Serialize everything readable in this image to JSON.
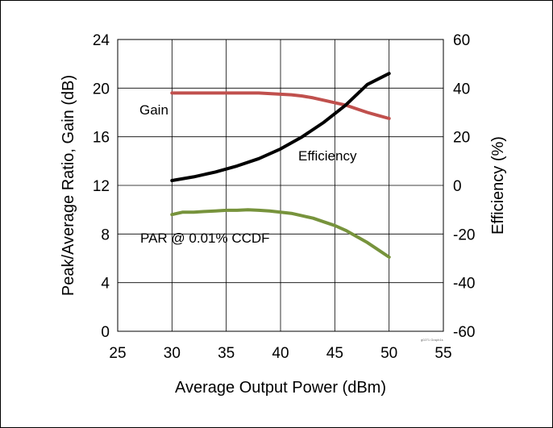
{
  "chart_data": {
    "type": "line",
    "title": "",
    "xlabel": "Average Output Power (dBm)",
    "ylabel": "Peak/Average Ratio, Gain (dB)",
    "y2label": "Efficiency (%)",
    "xlim": [
      25,
      55
    ],
    "ylim": [
      0,
      24
    ],
    "y2lim": [
      -60,
      60
    ],
    "xticks": [
      25,
      30,
      35,
      40,
      45,
      50,
      55
    ],
    "yticks": [
      0,
      4,
      8,
      12,
      16,
      20,
      24
    ],
    "y2ticks": [
      -60,
      -40,
      -20,
      0,
      20,
      40,
      60
    ],
    "grid": true,
    "series": [
      {
        "name": "Gain",
        "axis": "left",
        "color": "#c0504d",
        "x": [
          30,
          31,
          32,
          33,
          34,
          35,
          36,
          37,
          38,
          39,
          40,
          41,
          42,
          43,
          44,
          45,
          46,
          47,
          48,
          49,
          50
        ],
        "values": [
          19.6,
          19.6,
          19.6,
          19.6,
          19.6,
          19.6,
          19.6,
          19.6,
          19.6,
          19.55,
          19.5,
          19.45,
          19.35,
          19.2,
          19.0,
          18.8,
          18.6,
          18.3,
          18.0,
          17.75,
          17.5
        ]
      },
      {
        "name": "Efficiency",
        "axis": "right",
        "color": "#000000",
        "x": [
          30,
          32,
          34,
          36,
          38,
          40,
          42,
          44,
          46,
          48,
          50
        ],
        "values": [
          2,
          3.5,
          5.5,
          8,
          11,
          15,
          20,
          26,
          33,
          41.5,
          46
        ]
      },
      {
        "name": "PAR @ 0.01% CCDF",
        "axis": "left",
        "color": "#77933c",
        "x": [
          30,
          31,
          32,
          33,
          34,
          35,
          36,
          37,
          38,
          39,
          40,
          41,
          42,
          43,
          44,
          45,
          46,
          47,
          48,
          49,
          50
        ],
        "values": [
          9.6,
          9.8,
          9.8,
          9.85,
          9.9,
          9.95,
          9.95,
          10.0,
          9.95,
          9.9,
          9.8,
          9.7,
          9.5,
          9.3,
          9.0,
          8.7,
          8.3,
          7.8,
          7.3,
          6.7,
          6.1
        ]
      }
    ],
    "annotations": [
      "Gain",
      "Efficiency",
      "PAR @ 0.01% CCDF"
    ],
    "figure_code": "g0271 Graph1s"
  }
}
